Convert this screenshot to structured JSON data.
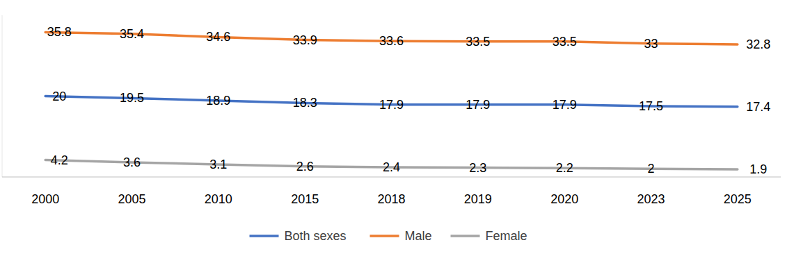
{
  "chart_data": {
    "type": "line",
    "categories": [
      "2000",
      "2005",
      "2010",
      "2015",
      "2018",
      "2019",
      "2020",
      "2023",
      "2025"
    ],
    "series": [
      {
        "name": "Both sexes",
        "color": "#4472c4",
        "values": [
          20,
          19.5,
          18.9,
          18.3,
          17.9,
          17.9,
          17.9,
          17.5,
          17.4
        ]
      },
      {
        "name": "Male",
        "color": "#ed7d31",
        "values": [
          35.8,
          35.4,
          34.6,
          33.9,
          33.6,
          33.5,
          33.5,
          33,
          32.8
        ]
      },
      {
        "name": "Female",
        "color": "#a5a5a5",
        "values": [
          4.2,
          3.6,
          3.1,
          2.6,
          2.4,
          2.3,
          2.2,
          2,
          1.9
        ]
      }
    ],
    "ylim": [
      0,
      40
    ],
    "grid": false,
    "legend": "bottom",
    "data_labels": true,
    "tick_labels": "x"
  }
}
